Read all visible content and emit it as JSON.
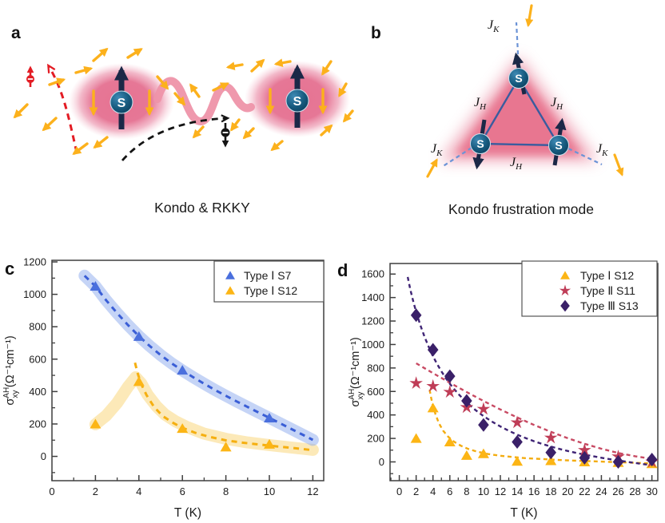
{
  "panels": {
    "a": {
      "letter": "a",
      "caption": "Kondo & RKKY",
      "site_label": "S"
    },
    "b": {
      "letter": "b",
      "caption": "Kondo frustration mode",
      "site_label": "S",
      "kondo_coupling": {
        "base": "J",
        "sub": "K"
      },
      "heisenberg_coupling": {
        "base": "J",
        "sub": "H"
      }
    },
    "c": {
      "letter": "c"
    },
    "d": {
      "letter": "d"
    }
  },
  "colors": {
    "pink_cloud": "#e46d8e",
    "rkky_wave": "#ee93a9",
    "conduction_spin": "#fcb11c",
    "local_moment": "#1b2847",
    "site_sphere": "#175a7e",
    "red_electron": "#e31c24",
    "black_electron": "#141414",
    "bond_line": "#3a5c9e",
    "kondo_dash": "#6b93d6",
    "axis": "#3f3f3f"
  },
  "chart_data": [
    {
      "id": "c",
      "type": "scatter",
      "xlabel": "T (K)",
      "ylabel_parts": {
        "base": "σ",
        "sup": "AH",
        "sub": "xy",
        "units": "(Ω⁻¹cm⁻¹)"
      },
      "xlim": [
        0,
        12.5
      ],
      "ylim": [
        -150,
        1210
      ],
      "xticks": [
        0,
        2,
        4,
        6,
        8,
        10,
        12
      ],
      "xminor_step": 1,
      "yticks": [
        0,
        200,
        400,
        600,
        800,
        1000,
        1200
      ],
      "yminor_step": 100,
      "grid": false,
      "legend_position": "top-right",
      "series": [
        {
          "name": "Type Ⅰ S12",
          "marker": "triangle-up",
          "color": "#fcb515",
          "dash_color": "#f5af10",
          "band_color": "#f8ca55",
          "band_opacity": 0.42,
          "points": [
            [
              2,
              200
            ],
            [
              4,
              462
            ],
            [
              6,
              172
            ],
            [
              8,
              58
            ],
            [
              10,
              75
            ]
          ],
          "trend": [
            [
              3.82,
              578
            ],
            [
              3.95,
              510
            ],
            [
              4.1,
              448
            ],
            [
              4.35,
              378
            ],
            [
              4.7,
              305
            ],
            [
              5.1,
              248
            ],
            [
              5.6,
              205
            ],
            [
              6,
              176
            ],
            [
              6.6,
              145
            ],
            [
              7.2,
              122
            ],
            [
              8,
              99
            ],
            [
              8.8,
              84
            ],
            [
              9.6,
              72
            ],
            [
              10.4,
              61
            ],
            [
              11.2,
              50
            ],
            [
              12,
              38
            ]
          ],
          "band": [
            [
              2,
              198
            ],
            [
              2.5,
              252
            ],
            [
              3,
              330
            ],
            [
              3.5,
              430
            ],
            [
              3.85,
              488
            ],
            [
              4.1,
              452
            ],
            [
              4.4,
              380
            ],
            [
              4.8,
              310
            ],
            [
              5.2,
              258
            ],
            [
              5.7,
              215
            ],
            [
              6.2,
              182
            ],
            [
              7,
              140
            ],
            [
              8,
              108
            ],
            [
              9,
              86
            ],
            [
              10,
              70
            ],
            [
              11,
              55
            ],
            [
              12,
              40
            ]
          ]
        },
        {
          "name": "Type Ⅰ S7",
          "marker": "triangle-up",
          "color": "#4a6fdd",
          "dash_color": "#3a5ed6",
          "band_color": "#8ca9ee",
          "band_opacity": 0.5,
          "points": [
            [
              2,
              1050
            ],
            [
              4,
              740
            ],
            [
              6,
              532
            ],
            [
              10,
              237
            ]
          ],
          "trend": [
            [
              1.5,
              1115
            ],
            [
              2,
              1050
            ],
            [
              2.5,
              962
            ],
            [
              3,
              884
            ],
            [
              3.5,
              810
            ],
            [
              4,
              742
            ],
            [
              4.5,
              681
            ],
            [
              5,
              625
            ],
            [
              5.5,
              575
            ],
            [
              6,
              530
            ],
            [
              6.5,
              488
            ],
            [
              7,
              448
            ],
            [
              7.5,
              410
            ],
            [
              8,
              374
            ],
            [
              8.5,
              339
            ],
            [
              9,
              305
            ],
            [
              9.5,
              271
            ],
            [
              10,
              238
            ],
            [
              10.5,
              204
            ],
            [
              11,
              170
            ],
            [
              11.5,
              136
            ],
            [
              12,
              102
            ]
          ],
          "band": [
            [
              1.5,
              1115
            ],
            [
              2,
              1050
            ],
            [
              2.5,
              962
            ],
            [
              3,
              884
            ],
            [
              3.5,
              810
            ],
            [
              4,
              742
            ],
            [
              4.5,
              681
            ],
            [
              5,
              625
            ],
            [
              5.5,
              575
            ],
            [
              6,
              530
            ],
            [
              6.5,
              488
            ],
            [
              7,
              448
            ],
            [
              7.5,
              410
            ],
            [
              8,
              374
            ],
            [
              8.5,
              339
            ],
            [
              9,
              305
            ],
            [
              9.5,
              271
            ],
            [
              10,
              238
            ],
            [
              10.5,
              204
            ],
            [
              11,
              170
            ],
            [
              11.5,
              136
            ],
            [
              12,
              102
            ]
          ]
        }
      ],
      "legend_order": [
        1,
        0
      ]
    },
    {
      "id": "d",
      "type": "scatter",
      "xlabel": "T (K)",
      "ylabel_parts": {
        "base": "σ",
        "sup": "AH",
        "sub": "xy",
        "units": "(Ω⁻¹cm⁻¹)"
      },
      "xlim": [
        -1.1,
        30.7
      ],
      "ylim": [
        -160,
        1690
      ],
      "xticks": [
        0,
        2,
        4,
        6,
        8,
        10,
        12,
        14,
        16,
        18,
        20,
        22,
        24,
        26,
        28,
        30
      ],
      "xminor_step": 1,
      "yticks": [
        0,
        200,
        400,
        600,
        800,
        1000,
        1200,
        1400,
        1600
      ],
      "yminor_step": 100,
      "grid": false,
      "legend_position": "top-right",
      "series": [
        {
          "name": "Type Ⅰ  S12",
          "marker": "triangle-up",
          "color": "#fcb515",
          "dash_color": "#f3ac10",
          "band": null,
          "band_color": null,
          "band_opacity": 0,
          "points": [
            [
              2,
              200
            ],
            [
              4,
              460
            ],
            [
              6,
              170
            ],
            [
              8,
              55
            ],
            [
              10,
              70
            ],
            [
              14,
              5
            ],
            [
              18,
              10
            ],
            [
              22,
              0
            ],
            [
              26,
              -5
            ],
            [
              30,
              -15
            ]
          ],
          "trend": [
            [
              3.6,
              615
            ],
            [
              3.8,
              540
            ],
            [
              4,
              478
            ],
            [
              4.3,
              405
            ],
            [
              4.7,
              330
            ],
            [
              5.2,
              266
            ],
            [
              5.8,
              215
            ],
            [
              6.5,
              172
            ],
            [
              7.3,
              138
            ],
            [
              8.2,
              110
            ],
            [
              9.2,
              88
            ],
            [
              10.5,
              68
            ],
            [
              12,
              52
            ],
            [
              13.5,
              41
            ],
            [
              15,
              32
            ],
            [
              17,
              24
            ],
            [
              19,
              16
            ],
            [
              21,
              10
            ],
            [
              23,
              5
            ],
            [
              25,
              0
            ],
            [
              27,
              -5
            ],
            [
              28.5,
              -9
            ],
            [
              30,
              -13
            ]
          ]
        },
        {
          "name": "Type Ⅱ  S11",
          "marker": "star",
          "color": "#bf3d57",
          "dash_color": "#c84a63",
          "band": null,
          "band_color": null,
          "band_opacity": 0,
          "points": [
            [
              2,
              670
            ],
            [
              4,
              645
            ],
            [
              6,
              595
            ],
            [
              8,
              465
            ],
            [
              10,
              450
            ],
            [
              14,
              335
            ],
            [
              18,
              205
            ],
            [
              22,
              100
            ],
            [
              26,
              45
            ],
            [
              30,
              0
            ]
          ],
          "trend": [
            [
              2,
              840
            ],
            [
              4,
              756
            ],
            [
              6,
              674
            ],
            [
              8,
              595
            ],
            [
              10,
              519
            ],
            [
              12,
              447
            ],
            [
              14,
              379
            ],
            [
              16,
              315
            ],
            [
              18,
              256
            ],
            [
              20,
              202
            ],
            [
              22,
              154
            ],
            [
              24,
              112
            ],
            [
              26,
              76
            ],
            [
              28,
              48
            ],
            [
              30,
              26
            ]
          ]
        },
        {
          "name": "Type Ⅲ S13",
          "marker": "diamond",
          "color": "#3a2068",
          "dash_color": "#3f2475",
          "band": null,
          "band_color": null,
          "band_opacity": 0,
          "points": [
            [
              2,
              1250
            ],
            [
              4,
              955
            ],
            [
              6,
              730
            ],
            [
              8,
              520
            ],
            [
              10,
              315
            ],
            [
              14,
              170
            ],
            [
              18,
              80
            ],
            [
              22,
              35
            ],
            [
              26,
              0
            ],
            [
              30,
              20
            ]
          ],
          "trend": [
            [
              1,
              1575
            ],
            [
              1.3,
              1470
            ],
            [
              1.7,
              1355
            ],
            [
              2,
              1278
            ],
            [
              2.5,
              1165
            ],
            [
              3,
              1065
            ],
            [
              3.5,
              978
            ],
            [
              4,
              900
            ],
            [
              4.5,
              832
            ],
            [
              5,
              771
            ],
            [
              5.5,
              716
            ],
            [
              6,
              666
            ],
            [
              6.5,
              621
            ],
            [
              7,
              580
            ],
            [
              7.5,
              542
            ],
            [
              8,
              507
            ],
            [
              9,
              444
            ],
            [
              10,
              390
            ],
            [
              11,
              343
            ],
            [
              12,
              302
            ],
            [
              13,
              265
            ],
            [
              14,
              232
            ],
            [
              15,
              203
            ],
            [
              16,
              176
            ],
            [
              17,
              152
            ],
            [
              18,
              131
            ],
            [
              19,
              111
            ],
            [
              20,
              93
            ],
            [
              21,
              77
            ],
            [
              22,
              62
            ],
            [
              23,
              48
            ],
            [
              24,
              35
            ],
            [
              25,
              23
            ],
            [
              26,
              12
            ],
            [
              27,
              1
            ],
            [
              28,
              -9
            ],
            [
              29,
              -19
            ],
            [
              30,
              -28
            ]
          ]
        }
      ],
      "legend_order": [
        0,
        1,
        2
      ]
    }
  ]
}
